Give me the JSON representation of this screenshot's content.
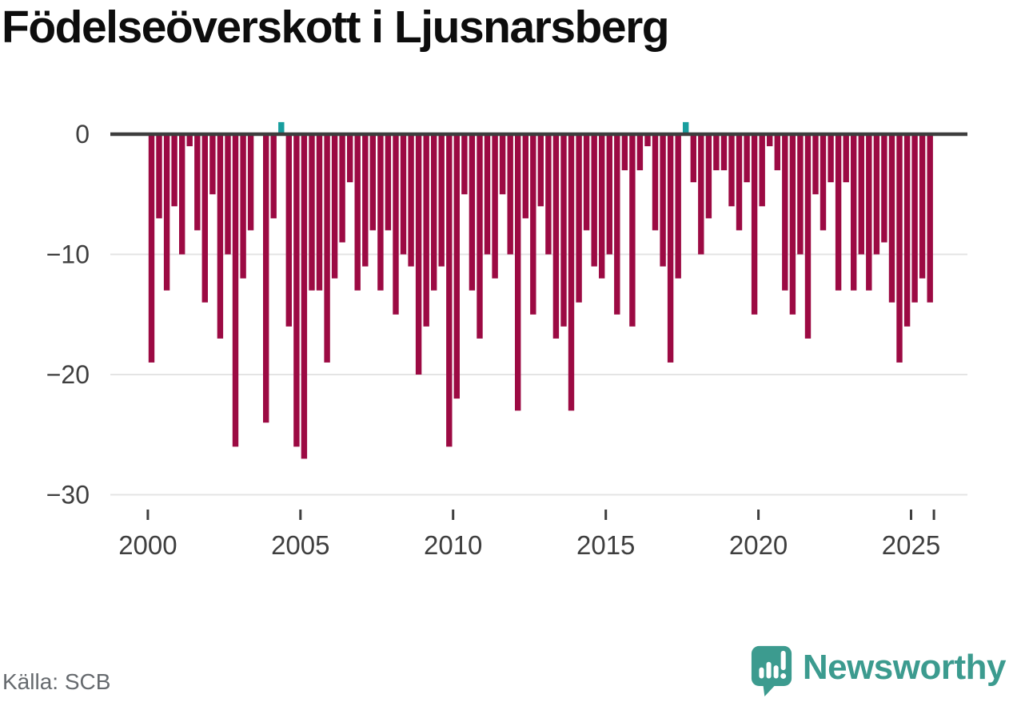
{
  "header": {
    "title": "Födelseöverskott i Ljusnarsberg"
  },
  "chart_data": {
    "type": "bar",
    "title": "Födelseöverskott i Ljusnarsberg",
    "frequency": "quarterly",
    "x_start": {
      "year": 2000,
      "quarter": 1
    },
    "x_end": {
      "year": 2025,
      "quarter": 3
    },
    "values": [
      -19,
      -7,
      -13,
      -6,
      -10,
      -1,
      -8,
      -14,
      -5,
      -17,
      -10,
      -26,
      -12,
      -8,
      0,
      -24,
      -7,
      1,
      -16,
      -26,
      -27,
      -13,
      -13,
      -19,
      -12,
      -9,
      -4,
      -13,
      -11,
      -8,
      -13,
      -8,
      -15,
      -10,
      -11,
      -20,
      -16,
      -13,
      -11,
      -26,
      -22,
      -5,
      -13,
      -17,
      -10,
      -12,
      -5,
      -10,
      -23,
      -7,
      -15,
      -6,
      -10,
      -17,
      -16,
      -23,
      -14,
      -8,
      -11,
      -12,
      -10,
      -15,
      -3,
      -16,
      -3,
      -1,
      -8,
      -11,
      -19,
      -12,
      1,
      -4,
      -10,
      -7,
      -3,
      -3,
      -6,
      -8,
      -4,
      -15,
      -6,
      -1,
      -3,
      -13,
      -15,
      -10,
      -17,
      -5,
      -8,
      -4,
      -13,
      -4,
      -13,
      -10,
      -13,
      -10,
      -9,
      -14,
      -19,
      -16,
      -14,
      -12,
      -14
    ],
    "y_ticks": [
      {
        "value": 0,
        "label": "0"
      },
      {
        "value": -10,
        "label": "−10"
      },
      {
        "value": -20,
        "label": "−20"
      },
      {
        "value": -30,
        "label": "−30"
      }
    ],
    "x_ticks": [
      {
        "year": 2000,
        "label": "2000"
      },
      {
        "year": 2005,
        "label": "2005"
      },
      {
        "year": 2010,
        "label": "2010"
      },
      {
        "year": 2015,
        "label": "2015"
      },
      {
        "year": 2020,
        "label": "2020"
      },
      {
        "year": 2025,
        "label": "2025"
      },
      {
        "year": 2025.75,
        "label": ""
      }
    ],
    "ylim": [
      -30,
      2
    ],
    "xlabel": "",
    "ylabel": "",
    "grid": "horizontal",
    "legend": "none",
    "colors": {
      "negative_bar": "#9C0A43",
      "positive_bar": "#189E9E",
      "zero_line": "#3D3D3D",
      "gridline": "#E4E4E4",
      "tick_label": "#3F3F3F"
    }
  },
  "footer": {
    "source": "Källa: SCB",
    "brand": "Newsworthy",
    "brand_color": "#3C9B8F"
  }
}
